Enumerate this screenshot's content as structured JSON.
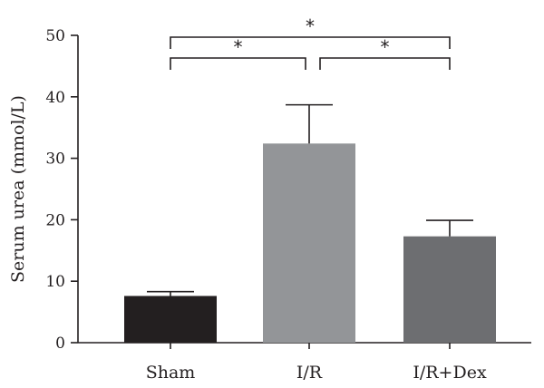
{
  "chart_data": {
    "type": "bar",
    "categories": [
      "Sham",
      "I/R",
      "I/R+Dex"
    ],
    "values": [
      7.6,
      32.4,
      17.3
    ],
    "error_upper": [
      8.3,
      38.7,
      19.9
    ],
    "bar_colors": [
      "#231f20",
      "#939598",
      "#6d6e71"
    ],
    "ylabel": "Serum urea (mmol/L)",
    "xlabel": "",
    "ylim": [
      0,
      50
    ],
    "yticks": [
      0,
      10,
      20,
      30,
      40,
      50
    ],
    "grid": false,
    "significance": [
      {
        "from": 0,
        "to": 1,
        "label": "*",
        "level": "inner"
      },
      {
        "from": 1,
        "to": 2,
        "label": "*",
        "level": "inner"
      },
      {
        "from": 0,
        "to": 2,
        "label": "*",
        "level": "outer"
      }
    ]
  }
}
